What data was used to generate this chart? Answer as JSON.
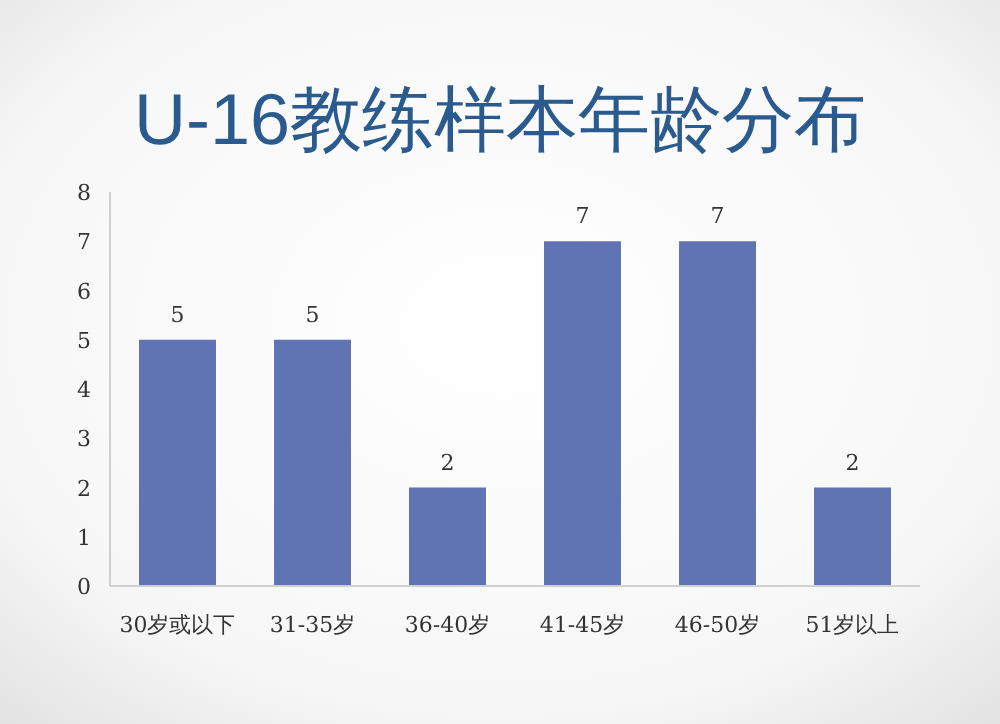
{
  "chart_data": {
    "type": "bar",
    "title": "U-16教练样本年龄分布",
    "categories": [
      "30岁或以下",
      "31-35岁",
      "36-40岁",
      "41-45岁",
      "46-50岁",
      "51岁以上"
    ],
    "values": [
      5,
      5,
      2,
      7,
      7,
      2
    ],
    "color": "#6073b3",
    "ylim": [
      0,
      8
    ],
    "yticks": [
      0,
      1,
      2,
      3,
      4,
      5,
      6,
      7,
      8
    ],
    "data_labels": true,
    "grid": false
  }
}
